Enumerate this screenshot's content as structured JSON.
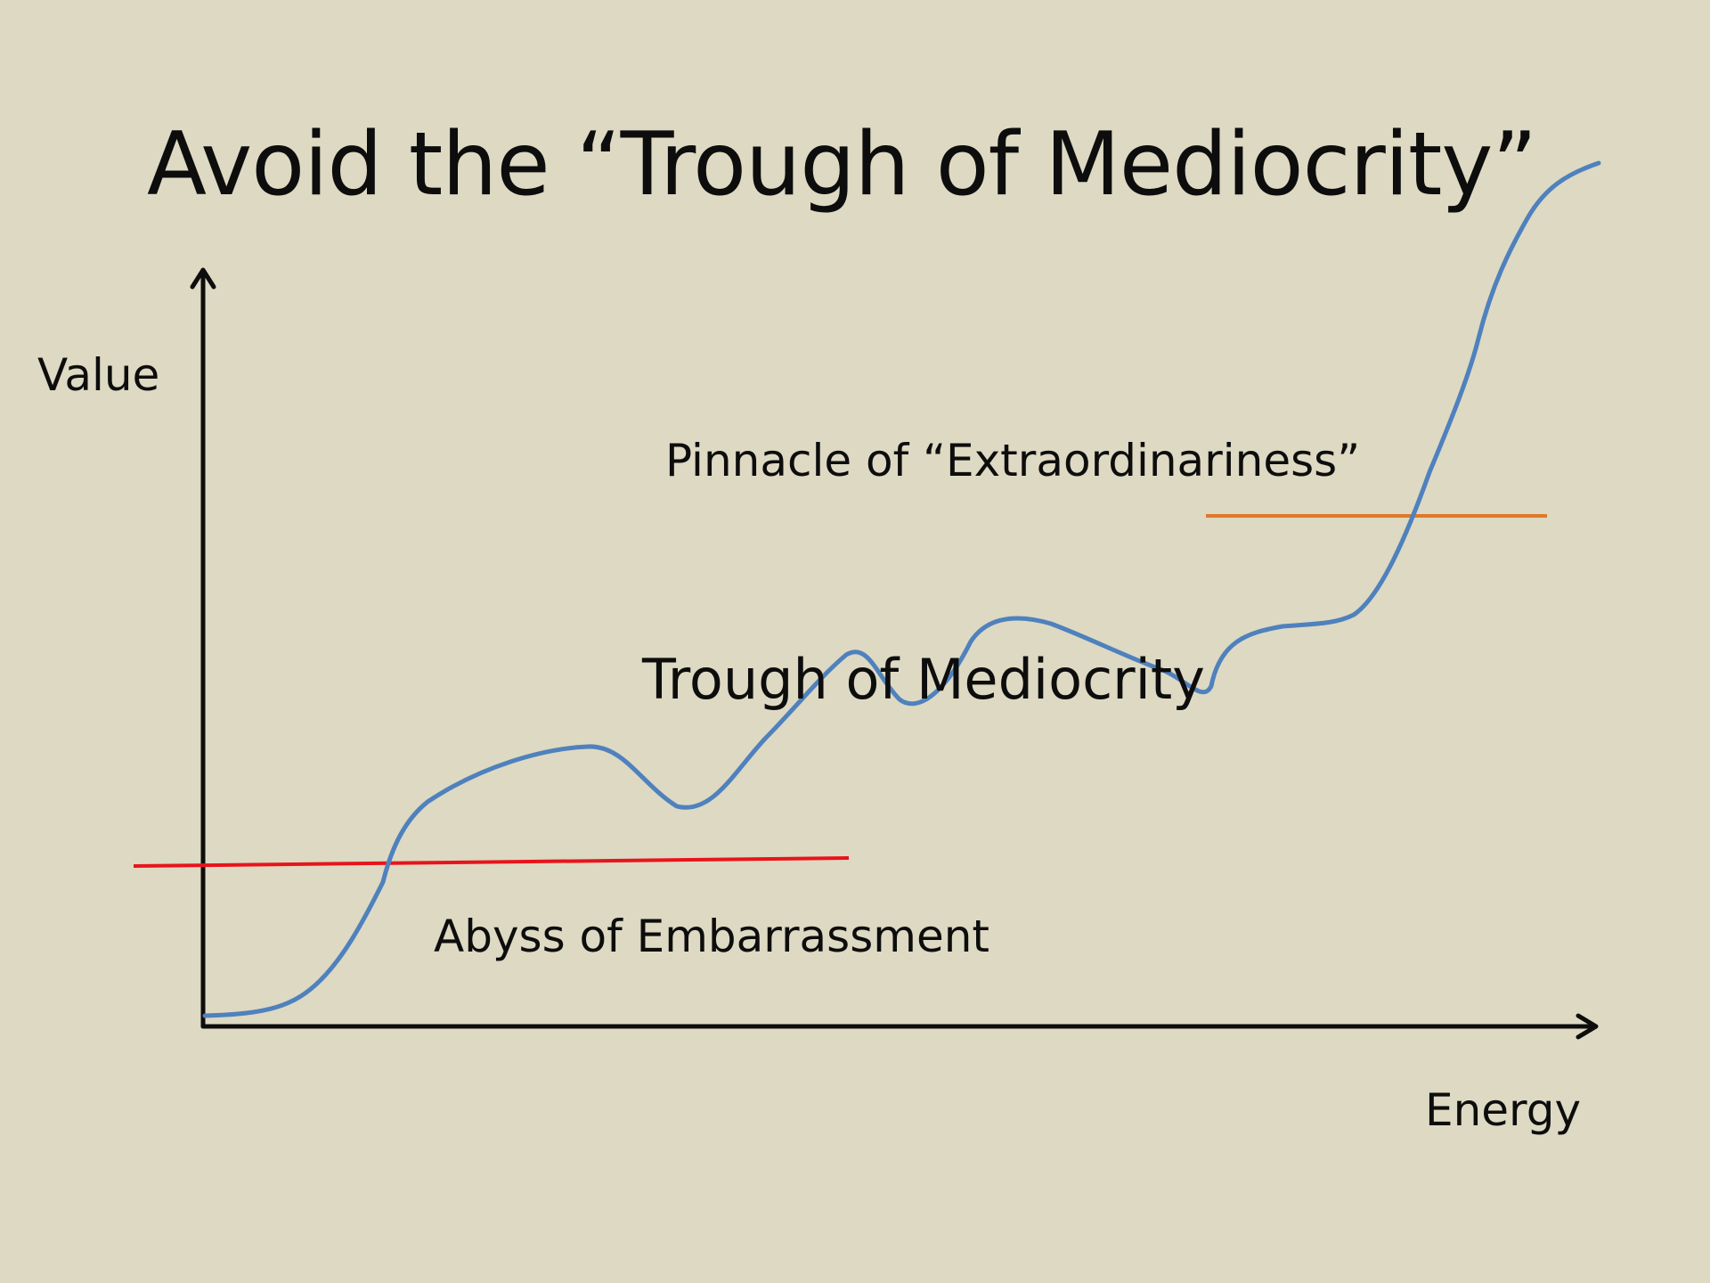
{
  "title": "Avoid the “Trough of Mediocrity”",
  "axes": {
    "y_label": "Value",
    "x_label": "Energy"
  },
  "annotations": {
    "pinnacle": "Pinnacle of “Extraordinariness”",
    "trough": "Trough of Mediocrity",
    "abyss": "Abyss of Embarrassment"
  },
  "colors": {
    "background": "#DDD9C3",
    "curve": "#4F81BD",
    "abyss_line": "#E8141B",
    "pinnacle_line": "#E0782B",
    "axes": "#0d0d0d"
  }
}
